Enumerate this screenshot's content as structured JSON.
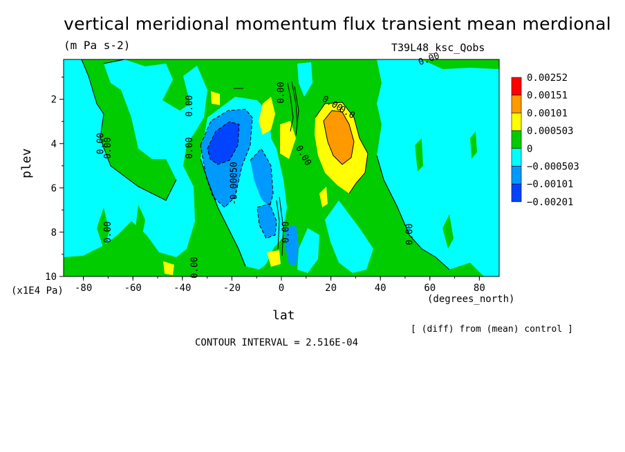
{
  "chart_data": {
    "type": "heatmap",
    "subtype": "filled contour",
    "title": "vertical meridional momentum flux transient mean merdional",
    "units": "(m Pa s-2)",
    "run_label": "T39L48_ksc_Qobs",
    "xlabel": "lat",
    "x_unit_label": "(degrees_north)",
    "ylabel": "plev",
    "y_unit_label": "(x1E4 Pa)",
    "x_ticks": [
      "-80",
      "-60",
      "-40",
      "-20",
      "0",
      "20",
      "40",
      "60",
      "80"
    ],
    "x_tick_values": [
      -80,
      -60,
      -40,
      -20,
      0,
      20,
      40,
      60,
      80
    ],
    "y_ticks": [
      "2",
      "4",
      "6",
      "8",
      "10"
    ],
    "y_tick_values": [
      2,
      4,
      6,
      8,
      10
    ],
    "xlim": [
      -88,
      88
    ],
    "ylim": [
      10,
      0.2
    ],
    "note": "[ (diff) from (mean) control ]",
    "contour_interval_text": "CONTOUR INTERVAL = 2.516E-04",
    "legend": {
      "labels": [
        "0.00252",
        "0.00151",
        "0.00101",
        "0.000503",
        "0",
        "−0.000503",
        "−0.00101",
        "−0.00201"
      ],
      "colors": [
        "#ff0000",
        "#ff9900",
        "#ffff00",
        "#00cc00",
        "#00ffff",
        "#0099ff",
        "#0044ff"
      ]
    },
    "contour_labels": [
      {
        "text": "0.00",
        "lon": -36,
        "p": 2.3,
        "rot": -90
      },
      {
        "text": "0.00",
        "lon": -72,
        "p": 4.0,
        "rot": -90
      },
      {
        "text": "0.00",
        "lon": -69,
        "p": 4.2,
        "rot": -90
      },
      {
        "text": "0.00",
        "lon": -36,
        "p": 4.2,
        "rot": -90
      },
      {
        "text": "0.00",
        "lon": -69,
        "p": 8.0,
        "rot": -90
      },
      {
        "text": "-0.00050",
        "lon": -18,
        "p": 5.8,
        "rot": -90
      },
      {
        "text": "0.00",
        "lon": -34,
        "p": 9.6,
        "rot": -90
      },
      {
        "text": "0.00",
        "lon": 53,
        "p": 8.1,
        "rot": -90
      },
      {
        "text": "0.00",
        "lon": 60,
        "p": 0.3,
        "rot": -20
      },
      {
        "text": "0.0",
        "lon": 26,
        "p": 2.7,
        "rot": 30
      },
      {
        "text": "0.00",
        "lon": 20,
        "p": 2.3,
        "rot": 30
      },
      {
        "text": "0.00",
        "lon": 3,
        "p": 8.0,
        "rot": -90
      },
      {
        "text": "0.00",
        "lon": 1,
        "p": 1.7,
        "rot": -90
      },
      {
        "text": "0.00",
        "lon": 8,
        "p": 4.6,
        "rot": 60
      }
    ]
  }
}
